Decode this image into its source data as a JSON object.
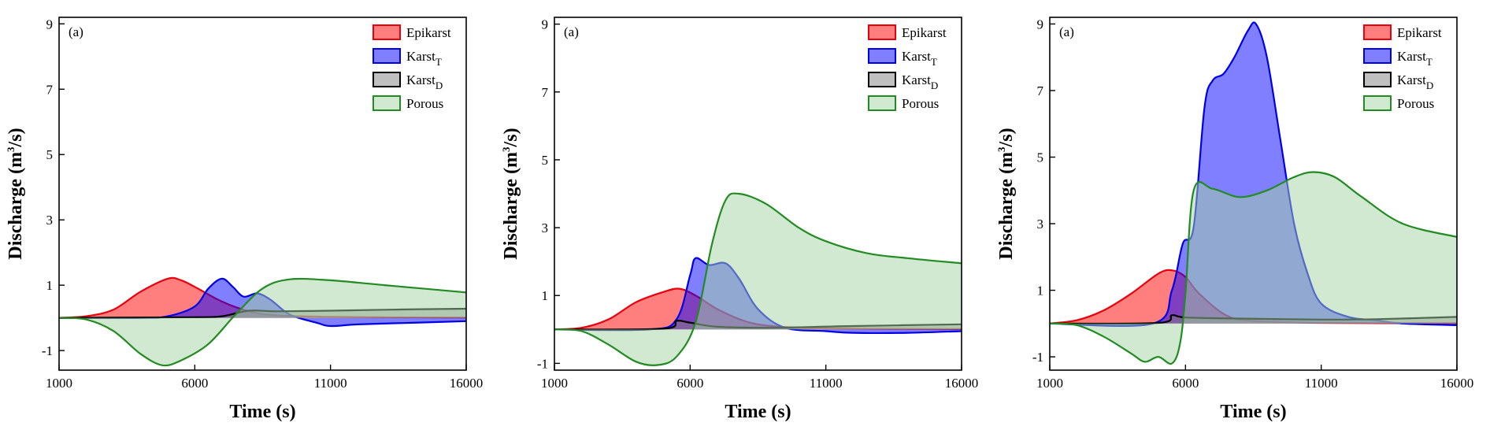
{
  "chart_data": [
    {
      "type": "area",
      "panel_label": "(a)",
      "xlabel": "Time (s)",
      "ylabel": "Discharge (m³/s)",
      "xlim": [
        1000,
        16000
      ],
      "ylim": [
        -1.6,
        9.2
      ],
      "xticks": [
        1000,
        6000,
        11000,
        16000
      ],
      "yticks": [
        -1,
        1,
        3,
        5,
        7,
        9
      ],
      "legend_placement": "top-right",
      "series": [
        {
          "name": "Epikarst",
          "name_sub": "",
          "fill": "#ff0000",
          "stroke": "#e8000b",
          "points": [
            [
              1000,
              0
            ],
            [
              2000,
              0.05
            ],
            [
              3000,
              0.25
            ],
            [
              4000,
              0.8
            ],
            [
              5000,
              1.2
            ],
            [
              5500,
              1.15
            ],
            [
              6000,
              0.95
            ],
            [
              7000,
              0.5
            ],
            [
              8000,
              0.2
            ],
            [
              9000,
              0.08
            ],
            [
              11000,
              0.03
            ],
            [
              16000,
              0.01
            ]
          ]
        },
        {
          "name": "Karst",
          "name_sub": "T",
          "fill": "#0000ff",
          "stroke": "#0000e6",
          "points": [
            [
              1000,
              0
            ],
            [
              4000,
              0
            ],
            [
              5000,
              0.05
            ],
            [
              6000,
              0.35
            ],
            [
              6500,
              0.9
            ],
            [
              7000,
              1.2
            ],
            [
              7400,
              0.95
            ],
            [
              7800,
              0.65
            ],
            [
              8300,
              0.75
            ],
            [
              8800,
              0.55
            ],
            [
              9500,
              0.1
            ],
            [
              10500,
              -0.15
            ],
            [
              11000,
              -0.25
            ],
            [
              12000,
              -0.2
            ],
            [
              14000,
              -0.15
            ],
            [
              16000,
              -0.1
            ]
          ]
        },
        {
          "name": "Karst",
          "name_sub": "D",
          "fill": "#808080",
          "stroke": "#000000",
          "points": [
            [
              1000,
              0
            ],
            [
              6000,
              0.02
            ],
            [
              7000,
              0.05
            ],
            [
              8000,
              0.22
            ],
            [
              9000,
              0.2
            ],
            [
              11000,
              0.22
            ],
            [
              13000,
              0.25
            ],
            [
              16000,
              0.28
            ]
          ]
        },
        {
          "name": "Porous",
          "name_sub": "",
          "fill": "#a3d4a3",
          "stroke": "#228b22",
          "points": [
            [
              1000,
              0
            ],
            [
              2000,
              -0.05
            ],
            [
              3000,
              -0.4
            ],
            [
              4000,
              -1.1
            ],
            [
              4800,
              -1.45
            ],
            [
              5500,
              -1.3
            ],
            [
              6500,
              -0.8
            ],
            [
              7500,
              0.1
            ],
            [
              8500,
              0.9
            ],
            [
              9500,
              1.18
            ],
            [
              11000,
              1.15
            ],
            [
              13000,
              1.0
            ],
            [
              16000,
              0.78
            ]
          ]
        }
      ]
    },
    {
      "type": "area",
      "panel_label": "(a)",
      "xlabel": "Time (s)",
      "ylabel": "Discharge (m³/s)",
      "xlim": [
        1000,
        16000
      ],
      "ylim": [
        -1.2,
        9.2
      ],
      "xticks": [
        1000,
        6000,
        11000,
        16000
      ],
      "yticks": [
        -1,
        1,
        3,
        5,
        7,
        9
      ],
      "legend_placement": "top-right",
      "series": [
        {
          "name": "Epikarst",
          "name_sub": "",
          "fill": "#ff0000",
          "stroke": "#e8000b",
          "points": [
            [
              1000,
              0
            ],
            [
              2000,
              0.05
            ],
            [
              3000,
              0.3
            ],
            [
              4000,
              0.8
            ],
            [
              5000,
              1.1
            ],
            [
              5600,
              1.2
            ],
            [
              6200,
              1.0
            ],
            [
              7000,
              0.6
            ],
            [
              8000,
              0.25
            ],
            [
              9000,
              0.1
            ],
            [
              11000,
              0.03
            ],
            [
              16000,
              0.01
            ]
          ]
        },
        {
          "name": "Karst",
          "name_sub": "T",
          "fill": "#0000ff",
          "stroke": "#0000e6",
          "points": [
            [
              1000,
              0
            ],
            [
              4500,
              0
            ],
            [
              5500,
              0.3
            ],
            [
              6000,
              1.6
            ],
            [
              6200,
              2.1
            ],
            [
              6700,
              1.9
            ],
            [
              7300,
              1.95
            ],
            [
              7800,
              1.5
            ],
            [
              8500,
              0.6
            ],
            [
              9500,
              0.05
            ],
            [
              11000,
              -0.05
            ],
            [
              12000,
              -0.1
            ],
            [
              14000,
              -0.1
            ],
            [
              16000,
              -0.05
            ]
          ]
        },
        {
          "name": "Karst",
          "name_sub": "D",
          "fill": "#808080",
          "stroke": "#000000",
          "points": [
            [
              1000,
              0
            ],
            [
              5000,
              0.02
            ],
            [
              5500,
              0.25
            ],
            [
              6000,
              0.2
            ],
            [
              7000,
              0.08
            ],
            [
              9000,
              0.05
            ],
            [
              12000,
              0.1
            ],
            [
              16000,
              0.15
            ]
          ]
        },
        {
          "name": "Porous",
          "name_sub": "",
          "fill": "#a3d4a3",
          "stroke": "#228b22",
          "points": [
            [
              1000,
              0
            ],
            [
              2000,
              -0.05
            ],
            [
              3000,
              -0.45
            ],
            [
              4000,
              -0.95
            ],
            [
              4800,
              -1.05
            ],
            [
              5500,
              -0.8
            ],
            [
              6200,
              0.2
            ],
            [
              6800,
              2.5
            ],
            [
              7300,
              3.8
            ],
            [
              7800,
              4.0
            ],
            [
              8800,
              3.7
            ],
            [
              10000,
              3.0
            ],
            [
              11000,
              2.6
            ],
            [
              12500,
              2.25
            ],
            [
              14000,
              2.1
            ],
            [
              16000,
              1.95
            ]
          ]
        }
      ]
    },
    {
      "type": "area",
      "panel_label": "(a)",
      "xlabel": "Time (s)",
      "ylabel": "Discharge (m³/s)",
      "xlim": [
        1000,
        16000
      ],
      "ylim": [
        -1.4,
        9.2
      ],
      "xticks": [
        1000,
        6000,
        11000,
        16000
      ],
      "yticks": [
        -1,
        1,
        3,
        5,
        7,
        9
      ],
      "legend_placement": "top-right",
      "series": [
        {
          "name": "Epikarst",
          "name_sub": "",
          "fill": "#ff0000",
          "stroke": "#e8000b",
          "points": [
            [
              1000,
              0
            ],
            [
              2000,
              0.1
            ],
            [
              3000,
              0.4
            ],
            [
              4000,
              0.9
            ],
            [
              5000,
              1.5
            ],
            [
              5500,
              1.6
            ],
            [
              6000,
              1.4
            ],
            [
              6500,
              0.9
            ],
            [
              7500,
              0.25
            ],
            [
              8500,
              0.08
            ],
            [
              11000,
              0.02
            ],
            [
              16000,
              0.01
            ]
          ]
        },
        {
          "name": "Karst",
          "name_sub": "T",
          "fill": "#0000ff",
          "stroke": "#0000e6",
          "points": [
            [
              1000,
              0
            ],
            [
              4800,
              0
            ],
            [
              5500,
              1.0
            ],
            [
              5900,
              2.4
            ],
            [
              6300,
              2.9
            ],
            [
              6700,
              6.5
            ],
            [
              7000,
              7.3
            ],
            [
              7400,
              7.5
            ],
            [
              7800,
              8.0
            ],
            [
              8300,
              8.8
            ],
            [
              8600,
              9.0
            ],
            [
              9000,
              8.0
            ],
            [
              9500,
              5.5
            ],
            [
              10000,
              3.0
            ],
            [
              10500,
              1.5
            ],
            [
              11000,
              0.6
            ],
            [
              12000,
              0.2
            ],
            [
              13000,
              0.1
            ],
            [
              14000,
              0.0
            ],
            [
              16000,
              -0.05
            ]
          ]
        },
        {
          "name": "Karst",
          "name_sub": "D",
          "fill": "#808080",
          "stroke": "#000000",
          "points": [
            [
              1000,
              0
            ],
            [
              5000,
              0.02
            ],
            [
              5500,
              0.25
            ],
            [
              6000,
              0.18
            ],
            [
              8000,
              0.15
            ],
            [
              11000,
              0.12
            ],
            [
              13000,
              0.13
            ],
            [
              16000,
              0.2
            ]
          ]
        },
        {
          "name": "Porous",
          "name_sub": "",
          "fill": "#a3d4a3",
          "stroke": "#228b22",
          "points": [
            [
              1000,
              0
            ],
            [
              2000,
              -0.05
            ],
            [
              3000,
              -0.4
            ],
            [
              4000,
              -0.9
            ],
            [
              4500,
              -1.15
            ],
            [
              5000,
              -1.0
            ],
            [
              5500,
              -1.2
            ],
            [
              5800,
              -0.6
            ],
            [
              6000,
              0.9
            ],
            [
              6300,
              4.0
            ],
            [
              7000,
              4.05
            ],
            [
              8000,
              3.8
            ],
            [
              9000,
              4.0
            ],
            [
              10000,
              4.4
            ],
            [
              10700,
              4.55
            ],
            [
              11500,
              4.4
            ],
            [
              12500,
              3.8
            ],
            [
              14000,
              3.0
            ],
            [
              16000,
              2.6
            ]
          ]
        }
      ]
    }
  ]
}
